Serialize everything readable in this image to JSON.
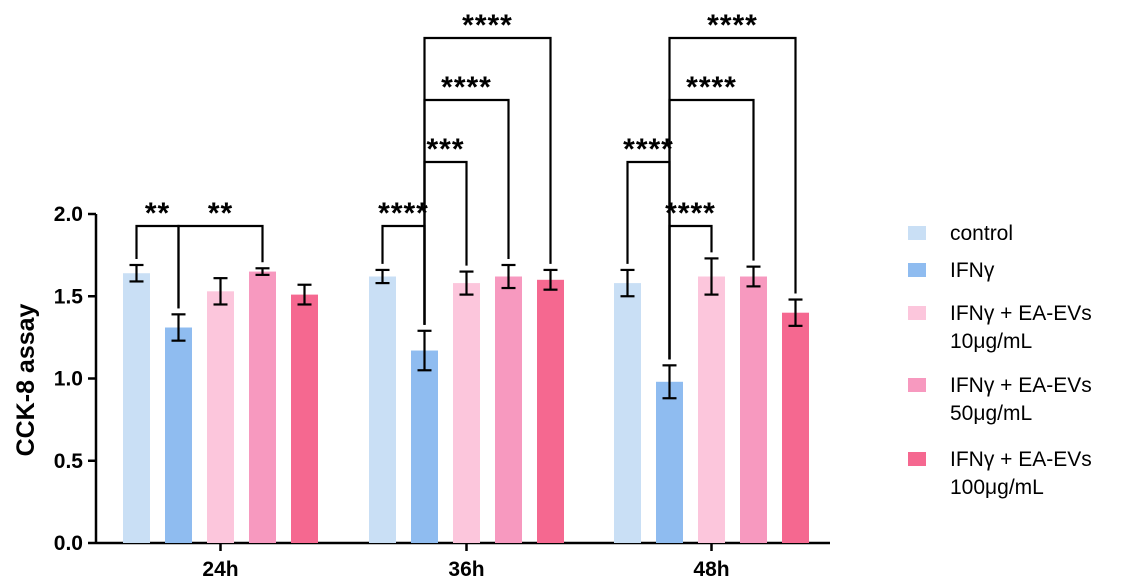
{
  "chart_data": {
    "type": "bar",
    "title": "",
    "xlabel": "",
    "ylabel": "CCK-8 assay",
    "ylim": [
      0,
      2.0
    ],
    "yticks": [
      "0.0",
      "0.5",
      "1.0",
      "1.5",
      "2.0"
    ],
    "categories": [
      "24h",
      "36h",
      "48h"
    ],
    "legend_position": "right",
    "series": [
      {
        "name": "control",
        "color": "#c9dff5",
        "values": [
          1.64,
          1.62,
          1.58
        ],
        "errors": [
          0.05,
          0.04,
          0.08
        ]
      },
      {
        "name": "IFNγ",
        "color": "#8fbcf0",
        "values": [
          1.31,
          1.17,
          0.98
        ],
        "errors": [
          0.08,
          0.12,
          0.1
        ]
      },
      {
        "name": "IFNγ + EA-EVs 10μg/mL",
        "color": "#fcc6dc",
        "values": [
          1.53,
          1.58,
          1.62
        ],
        "errors": [
          0.08,
          0.07,
          0.11
        ]
      },
      {
        "name": "IFNγ + EA-EVs 50μg/mL",
        "color": "#f799bf",
        "values": [
          1.65,
          1.62,
          1.62
        ],
        "errors": [
          0.02,
          0.07,
          0.06
        ]
      },
      {
        "name": "IFNγ + EA-EVs 100μg/mL",
        "color": "#f56890",
        "values": [
          1.51,
          1.6,
          1.4
        ],
        "errors": [
          0.06,
          0.06,
          0.08
        ]
      }
    ],
    "legend_lines": [
      [
        "control"
      ],
      [
        "IFNγ"
      ],
      [
        "IFNγ + EA-EVs",
        "10μg/mL"
      ],
      [
        "IFNγ + EA-EVs",
        "50μg/mL"
      ],
      [
        "IFNγ + EA-EVs",
        "100μg/mL"
      ]
    ],
    "annotations": [
      {
        "group": 0,
        "from": 0,
        "to": 1,
        "label": "**",
        "level": 0
      },
      {
        "group": 0,
        "from": 1,
        "to": 3,
        "label": "**",
        "level": 0
      },
      {
        "group": 1,
        "from": 0,
        "to": 1,
        "label": "****",
        "level": 0
      },
      {
        "group": 1,
        "from": 1,
        "to": 2,
        "label": "***",
        "level": 1
      },
      {
        "group": 1,
        "from": 1,
        "to": 3,
        "label": "****",
        "level": 2
      },
      {
        "group": 1,
        "from": 1,
        "to": 4,
        "label": "****",
        "level": 3
      },
      {
        "group": 2,
        "from": 1,
        "to": 2,
        "label": "****",
        "level": 0
      },
      {
        "group": 2,
        "from": 0,
        "to": 1,
        "label": "****",
        "level": 1
      },
      {
        "group": 2,
        "from": 1,
        "to": 3,
        "label": "****",
        "level": 2
      },
      {
        "group": 2,
        "from": 1,
        "to": 4,
        "label": "****",
        "level": 3
      }
    ]
  }
}
